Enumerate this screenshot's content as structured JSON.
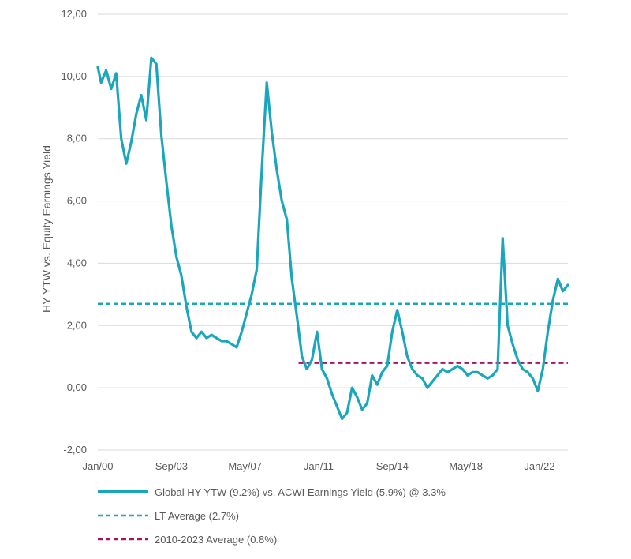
{
  "chart_data": {
    "type": "line",
    "title": "",
    "xlabel": "",
    "ylabel": "HY YTW vs. Equity Earnings Yield",
    "ylim": [
      -2,
      12
    ],
    "yticks": [
      -2,
      0,
      2,
      4,
      6,
      8,
      10,
      12
    ],
    "ytick_labels": [
      "-2,00",
      "0,00",
      "2,00",
      "4,00",
      "6,00",
      "8,00",
      "10,00",
      "12,00"
    ],
    "xlim": [
      "2000-01",
      "2023-06"
    ],
    "xticks": [
      "2000-01",
      "2003-09",
      "2007-05",
      "2011-01",
      "2014-09",
      "2018-05",
      "2022-01"
    ],
    "xtick_labels": [
      "Jan/00",
      "Sep/03",
      "May/07",
      "Jan/11",
      "Sep/14",
      "May/18",
      "Jan/22"
    ],
    "grid": "horizontal",
    "legend_position": "bottom",
    "series": [
      {
        "name": "Global HY YTW (9.2%) vs. ACWI Earnings Yield (5.9%) @ 3.3%",
        "color": "#1aa6bd",
        "style": "solid",
        "x": [
          "2000-01",
          "2000-03",
          "2000-06",
          "2000-09",
          "2000-12",
          "2001-03",
          "2001-06",
          "2001-09",
          "2001-12",
          "2002-03",
          "2002-06",
          "2002-09",
          "2002-12",
          "2003-03",
          "2003-06",
          "2003-09",
          "2003-12",
          "2004-03",
          "2004-06",
          "2004-09",
          "2004-12",
          "2005-03",
          "2005-06",
          "2005-09",
          "2005-12",
          "2006-03",
          "2006-06",
          "2006-09",
          "2006-12",
          "2007-03",
          "2007-06",
          "2007-09",
          "2007-12",
          "2008-03",
          "2008-06",
          "2008-09",
          "2008-12",
          "2009-03",
          "2009-06",
          "2009-09",
          "2009-12",
          "2010-03",
          "2010-06",
          "2010-09",
          "2010-12",
          "2011-03",
          "2011-06",
          "2011-09",
          "2011-12",
          "2012-03",
          "2012-06",
          "2012-09",
          "2012-12",
          "2013-03",
          "2013-06",
          "2013-09",
          "2013-12",
          "2014-03",
          "2014-06",
          "2014-09",
          "2014-12",
          "2015-03",
          "2015-06",
          "2015-09",
          "2015-12",
          "2016-03",
          "2016-06",
          "2016-09",
          "2016-12",
          "2017-03",
          "2017-06",
          "2017-09",
          "2017-12",
          "2018-03",
          "2018-06",
          "2018-09",
          "2018-12",
          "2019-03",
          "2019-06",
          "2019-09",
          "2019-12",
          "2020-03",
          "2020-06",
          "2020-09",
          "2020-12",
          "2021-03",
          "2021-06",
          "2021-09",
          "2021-12",
          "2022-03",
          "2022-06",
          "2022-09",
          "2022-12",
          "2023-03",
          "2023-06"
        ],
        "values": [
          10.3,
          9.8,
          10.2,
          9.6,
          10.1,
          8.0,
          7.2,
          7.9,
          8.8,
          9.4,
          8.6,
          10.6,
          10.4,
          8.1,
          6.6,
          5.2,
          4.2,
          3.6,
          2.6,
          1.8,
          1.6,
          1.8,
          1.6,
          1.7,
          1.6,
          1.5,
          1.5,
          1.4,
          1.3,
          1.8,
          2.4,
          3.0,
          3.8,
          7.0,
          9.8,
          8.2,
          7.0,
          6.0,
          5.4,
          3.5,
          2.3,
          1.0,
          0.6,
          0.9,
          1.8,
          0.6,
          0.3,
          -0.2,
          -0.6,
          -1.0,
          -0.8,
          0.0,
          -0.3,
          -0.7,
          -0.5,
          0.4,
          0.1,
          0.5,
          0.7,
          1.8,
          2.5,
          1.8,
          1.0,
          0.6,
          0.4,
          0.3,
          0.0,
          0.2,
          0.4,
          0.6,
          0.5,
          0.6,
          0.7,
          0.6,
          0.4,
          0.5,
          0.5,
          0.4,
          0.3,
          0.4,
          0.6,
          4.8,
          2.0,
          1.4,
          0.9,
          0.6,
          0.5,
          0.3,
          -0.1,
          0.6,
          1.8,
          2.8,
          3.5,
          3.1,
          3.3
        ]
      },
      {
        "name": "LT Average (2.7%)",
        "color": "#1aa6bd",
        "style": "dashed",
        "x": [
          "2000-01",
          "2023-06"
        ],
        "values": [
          2.7,
          2.7
        ]
      },
      {
        "name": "2010-2023 Average (0.8%)",
        "color": "#a8145e",
        "style": "dashed",
        "x": [
          "2010-01",
          "2023-06"
        ],
        "values": [
          0.8,
          0.8
        ]
      }
    ]
  }
}
